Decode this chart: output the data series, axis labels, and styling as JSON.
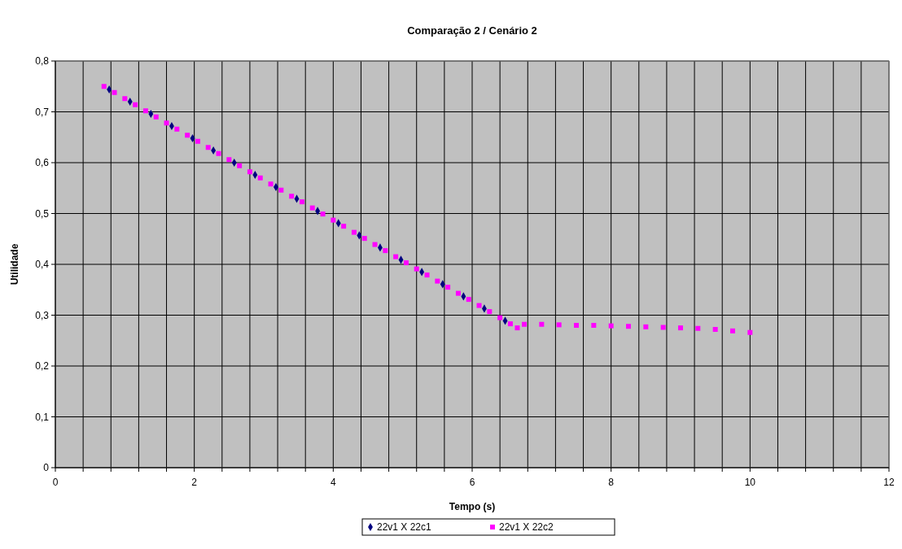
{
  "chart_data": {
    "type": "scatter",
    "title": "Comparação 2 / Cenário 2",
    "xlabel": "Tempo (s)",
    "ylabel": "Utilidade",
    "xlim": [
      0,
      12
    ],
    "ylim": [
      0,
      0.8
    ],
    "xticks": [
      0,
      {
        "value": 0.4,
        "label": null
      },
      {
        "value": 0.8,
        "label": null
      },
      {
        "value": 1.2,
        "label": null
      },
      {
        "value": 1.6,
        "label": null
      },
      2,
      {
        "value": 2.4,
        "label": null
      },
      {
        "value": 2.8,
        "label": null
      },
      {
        "value": 3.2,
        "label": null
      },
      {
        "value": 3.6,
        "label": null
      },
      4,
      {
        "value": 4.4,
        "label": null
      },
      {
        "value": 4.8,
        "label": null
      },
      {
        "value": 5.2,
        "label": null
      },
      {
        "value": 5.6,
        "label": null
      },
      6,
      {
        "value": 6.4,
        "label": null
      },
      {
        "value": 6.8,
        "label": null
      },
      {
        "value": 7.2,
        "label": null
      },
      {
        "value": 7.6,
        "label": null
      },
      8,
      {
        "value": 8.4,
        "label": null
      },
      {
        "value": 8.8,
        "label": null
      },
      {
        "value": 9.2,
        "label": null
      },
      {
        "value": 9.6,
        "label": null
      },
      10,
      {
        "value": 10.4,
        "label": null
      },
      {
        "value": 10.8,
        "label": null
      },
      {
        "value": 11.2,
        "label": null
      },
      {
        "value": 11.6,
        "label": null
      },
      12
    ],
    "yticks": [
      0,
      {
        "value": 0.1,
        "label": "0,1"
      },
      {
        "value": 0.2,
        "label": "0,2"
      },
      {
        "value": 0.3,
        "label": "0,3"
      },
      {
        "value": 0.4,
        "label": "0,4"
      },
      {
        "value": 0.5,
        "label": "0,5"
      },
      {
        "value": 0.6,
        "label": "0,6"
      },
      {
        "value": 0.7,
        "label": "0,7"
      },
      {
        "value": 0.8,
        "label": "0,8"
      }
    ],
    "grid": true,
    "legend": "bottom",
    "series": [
      {
        "name": "22v1 X 22c2",
        "color": "#ff00ff",
        "marker": "square",
        "x": [
          0.7,
          0.85,
          1.0,
          1.15,
          1.3,
          1.45,
          1.6,
          1.75,
          1.9,
          2.05,
          2.2,
          2.35,
          2.5,
          2.65,
          2.8,
          2.95,
          3.1,
          3.25,
          3.4,
          3.55,
          3.7,
          3.85,
          4.0,
          4.15,
          4.3,
          4.45,
          4.6,
          4.75,
          4.9,
          5.05,
          5.2,
          5.35,
          5.5,
          5.65,
          5.8,
          5.95,
          6.1,
          6.25,
          6.4,
          6.55,
          6.65,
          6.75,
          7.0,
          7.25,
          7.5,
          7.75,
          8.0,
          8.25,
          8.5,
          8.75,
          9.0,
          9.25,
          9.5,
          9.75,
          10.0
        ],
        "values": [
          0.75,
          0.738,
          0.726,
          0.714,
          0.702,
          0.69,
          0.678,
          0.666,
          0.654,
          0.642,
          0.63,
          0.618,
          0.606,
          0.594,
          0.582,
          0.57,
          0.558,
          0.546,
          0.534,
          0.523,
          0.511,
          0.499,
          0.487,
          0.475,
          0.463,
          0.451,
          0.439,
          0.427,
          0.415,
          0.403,
          0.391,
          0.379,
          0.367,
          0.355,
          0.343,
          0.331,
          0.319,
          0.307,
          0.295,
          0.283,
          0.275,
          0.282,
          0.282,
          0.281,
          0.28,
          0.28,
          0.279,
          0.278,
          0.277,
          0.276,
          0.275,
          0.274,
          0.272,
          0.269,
          0.266
        ]
      },
      {
        "name": "22v1 X 22c1",
        "color": "#000080",
        "marker": "diamond",
        "x": [
          0.775,
          1.075,
          1.375,
          1.675,
          1.975,
          2.275,
          2.575,
          2.875,
          3.175,
          3.475,
          3.775,
          4.075,
          4.375,
          4.675,
          4.975,
          5.275,
          5.575,
          5.875,
          6.175,
          6.475
        ],
        "values": [
          0.744,
          0.72,
          0.696,
          0.672,
          0.648,
          0.624,
          0.6,
          0.576,
          0.552,
          0.529,
          0.505,
          0.481,
          0.457,
          0.433,
          0.409,
          0.385,
          0.361,
          0.337,
          0.313,
          0.289
        ]
      }
    ]
  }
}
